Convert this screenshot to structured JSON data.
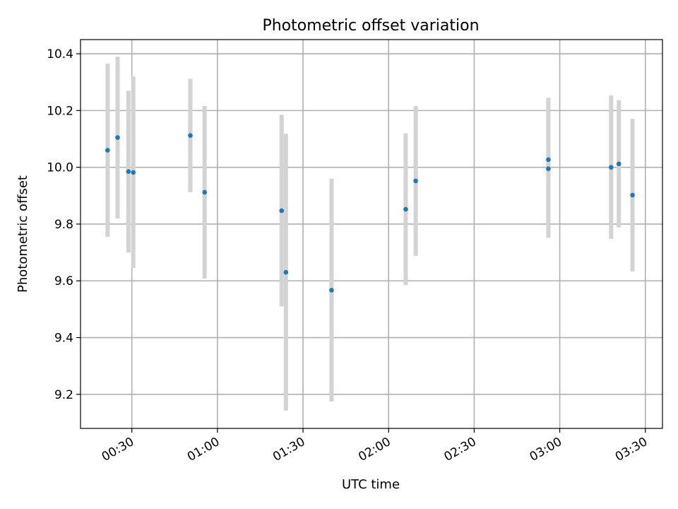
{
  "chart_data": {
    "type": "scatter",
    "title": "Photometric offset variation",
    "xlabel": "UTC time",
    "ylabel": "Photometric offset",
    "x_unit": "minutes since 00:00 UTC",
    "xlim": [
      12,
      216
    ],
    "ylim": [
      9.08,
      10.45
    ],
    "xticks": [
      {
        "value": 30,
        "label": "00:30"
      },
      {
        "value": 60,
        "label": "01:00"
      },
      {
        "value": 90,
        "label": "01:30"
      },
      {
        "value": 120,
        "label": "02:00"
      },
      {
        "value": 150,
        "label": "02:30"
      },
      {
        "value": 180,
        "label": "03:00"
      },
      {
        "value": 210,
        "label": "03:30"
      }
    ],
    "yticks": [
      {
        "value": 9.2,
        "label": "9.2"
      },
      {
        "value": 9.4,
        "label": "9.4"
      },
      {
        "value": 9.6,
        "label": "9.6"
      },
      {
        "value": 9.8,
        "label": "9.8"
      },
      {
        "value": 10.0,
        "label": "10.0"
      },
      {
        "value": 10.2,
        "label": "10.2"
      },
      {
        "value": 10.4,
        "label": "10.4"
      }
    ],
    "grid": true,
    "marker_color": "#1f77b4",
    "errorbar_color": "#d3d3d3",
    "points": [
      {
        "x": 21.5,
        "y": 10.06,
        "lo": 9.755,
        "hi": 10.365
      },
      {
        "x": 25.0,
        "y": 10.105,
        "lo": 9.82,
        "hi": 10.39
      },
      {
        "x": 28.8,
        "y": 9.985,
        "lo": 9.7,
        "hi": 10.27
      },
      {
        "x": 30.5,
        "y": 9.982,
        "lo": 9.645,
        "hi": 10.32
      },
      {
        "x": 50.5,
        "y": 10.112,
        "lo": 9.912,
        "hi": 10.312
      },
      {
        "x": 55.5,
        "y": 9.912,
        "lo": 9.608,
        "hi": 10.216
      },
      {
        "x": 82.5,
        "y": 9.847,
        "lo": 9.51,
        "hi": 10.185
      },
      {
        "x": 84.0,
        "y": 9.63,
        "lo": 9.143,
        "hi": 10.118
      },
      {
        "x": 100.0,
        "y": 9.567,
        "lo": 9.175,
        "hi": 9.96
      },
      {
        "x": 126.0,
        "y": 9.852,
        "lo": 9.585,
        "hi": 10.12
      },
      {
        "x": 129.5,
        "y": 9.952,
        "lo": 9.688,
        "hi": 10.216
      },
      {
        "x": 176.0,
        "y": 10.027,
        "lo": 9.81,
        "hi": 10.245
      },
      {
        "x": 176.0,
        "y": 9.995,
        "lo": 9.752,
        "hi": 10.238
      },
      {
        "x": 198.0,
        "y": 10.0,
        "lo": 9.748,
        "hi": 10.253
      },
      {
        "x": 200.7,
        "y": 10.012,
        "lo": 9.788,
        "hi": 10.236
      },
      {
        "x": 205.5,
        "y": 9.902,
        "lo": 9.633,
        "hi": 10.171
      }
    ]
  }
}
